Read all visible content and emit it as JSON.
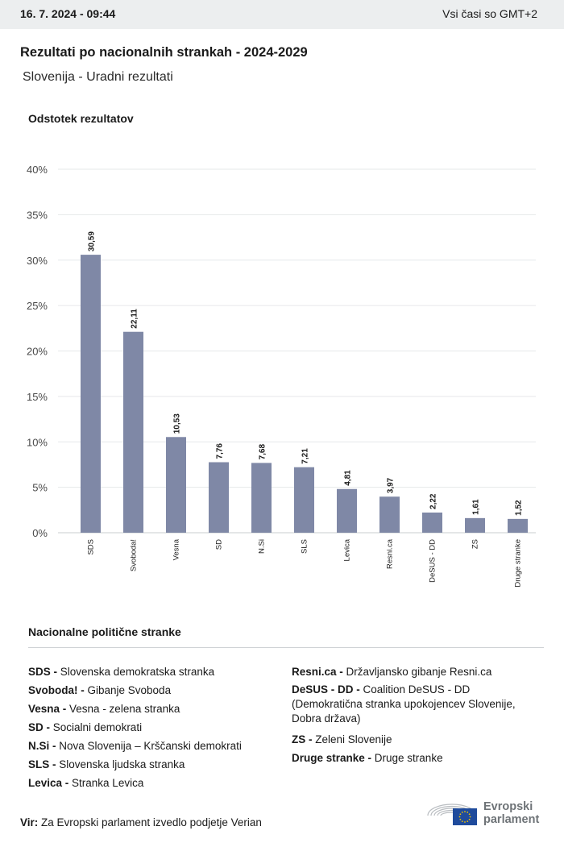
{
  "header": {
    "date": "16. 7. 2024 - 09:44",
    "timezone": "Vsi časi so GMT+2"
  },
  "title": "Rezultati po nacionalnih strankah - 2024-2029",
  "subtitle": "Slovenija - Uradni rezultati",
  "chart_data": {
    "type": "bar",
    "ylabel": "Odstotek rezultatov",
    "xlabel": "",
    "ylim": [
      0,
      40
    ],
    "yticks": [
      0,
      5,
      10,
      15,
      20,
      25,
      30,
      35,
      40
    ],
    "ytick_labels": [
      "0%",
      "5%",
      "10%",
      "15%",
      "20%",
      "25%",
      "30%",
      "35%",
      "40%"
    ],
    "categories": [
      "SDS",
      "Svoboda!",
      "Vesna",
      "SD",
      "N.Si",
      "SLS",
      "Levica",
      "Resni.ca",
      "DeSUS - DD",
      "ZS",
      "Druge stranke"
    ],
    "values": [
      30.59,
      22.11,
      10.53,
      7.76,
      7.68,
      7.21,
      4.81,
      3.97,
      2.22,
      1.61,
      1.52
    ],
    "value_labels": [
      "30,59",
      "22,11",
      "10,53",
      "7,76",
      "7,68",
      "7,21",
      "4,81",
      "3,97",
      "2,22",
      "1,61",
      "1,52"
    ],
    "bar_color": "#7f88a6",
    "grid": true
  },
  "legend": {
    "title": "Nacionalne politične stranke",
    "left": [
      {
        "abbr": "SDS -",
        "name": "Slovenska demokratska stranka"
      },
      {
        "abbr": "Svoboda! -",
        "name": "Gibanje Svoboda"
      },
      {
        "abbr": "Vesna -",
        "name": "Vesna - zelena stranka"
      },
      {
        "abbr": "SD -",
        "name": "Socialni demokrati"
      },
      {
        "abbr": "N.Si -",
        "name": "Nova Slovenija – Krščanski demokrati"
      },
      {
        "abbr": "SLS -",
        "name": "Slovenska ljudska stranka"
      },
      {
        "abbr": "Levica -",
        "name": "Stranka Levica"
      }
    ],
    "right": [
      {
        "abbr": "Resni.ca -",
        "name": "Državljansko gibanje Resni.ca"
      },
      {
        "abbr": "DeSUS - DD -",
        "name": "Coalition DeSUS - DD (Demokratična stranka upokojencev Slovenije, Dobra država)"
      },
      {
        "abbr": "ZS -",
        "name": "Zeleni Slovenije"
      },
      {
        "abbr": "Druge stranke -",
        "name": "Druge stranke"
      }
    ]
  },
  "source": {
    "label": "Vir:",
    "text": "Za Evropski parlament izvedlo podjetje Verian"
  },
  "logo": {
    "line1": "Evropski",
    "line2": "parlament",
    "flag_color": "#1f4b9c",
    "star_color": "#f2c300"
  }
}
